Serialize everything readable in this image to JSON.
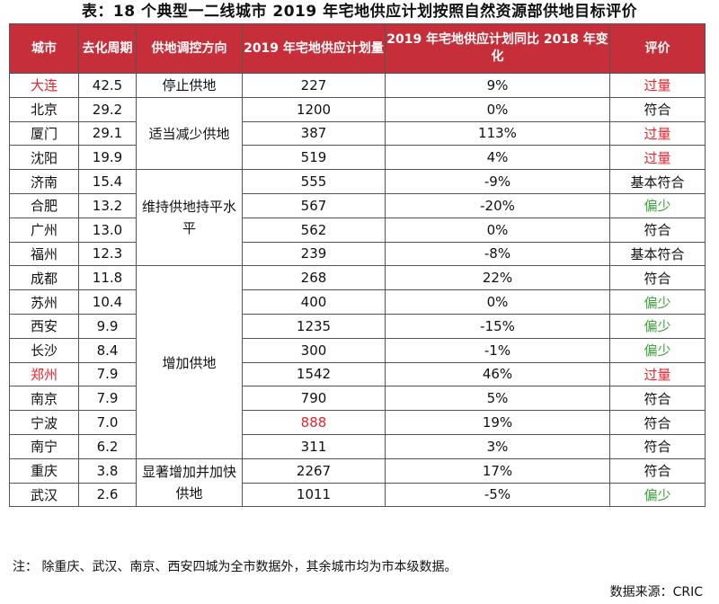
{
  "title": "表：18 个典型一二线城市 2019 年宅地供应计划按照自然资源部供地目标评价",
  "headers": {
    "city": "城市",
    "period": "去化周期",
    "direction": "供地调控方向",
    "plan": "2019 年宅地供应计划量",
    "change": "2019 年宅地供应计划同比 2018 年变化",
    "rating": "评价"
  },
  "colors": {
    "header_bg": "#c62f3a",
    "red_text": "#e8232a",
    "green_text": "#3aa53a"
  },
  "directions": {
    "stop": "停止供地",
    "reduce": "适当减少供地",
    "flat": "维持供地持平水平",
    "increase": "增加供地",
    "significant": "显著增加并加快供地"
  },
  "rows": [
    {
      "city": "大连",
      "period": "42.5",
      "plan": "227",
      "change": "9%",
      "rating": "过量"
    },
    {
      "city": "北京",
      "period": "29.2",
      "plan": "1200",
      "change": "0%",
      "rating": "符合"
    },
    {
      "city": "厦门",
      "period": "29.1",
      "plan": "387",
      "change": "113%",
      "rating": "过量"
    },
    {
      "city": "沈阳",
      "period": "19.9",
      "plan": "519",
      "change": "4%",
      "rating": "过量"
    },
    {
      "city": "济南",
      "period": "15.4",
      "plan": "555",
      "change": "-9%",
      "rating": "基本符合"
    },
    {
      "city": "合肥",
      "period": "13.2",
      "plan": "567",
      "change": "-20%",
      "rating": "偏少"
    },
    {
      "city": "广州",
      "period": "13.0",
      "plan": "562",
      "change": "0%",
      "rating": "符合"
    },
    {
      "city": "福州",
      "period": "12.3",
      "plan": "239",
      "change": "-8%",
      "rating": "基本符合"
    },
    {
      "city": "成都",
      "period": "11.8",
      "plan": "268",
      "change": "22%",
      "rating": "符合"
    },
    {
      "city": "苏州",
      "period": "10.4",
      "plan": "400",
      "change": "0%",
      "rating": "偏少"
    },
    {
      "city": "西安",
      "period": "9.9",
      "plan": "1235",
      "change": "-15%",
      "rating": "偏少"
    },
    {
      "city": "长沙",
      "period": "8.4",
      "plan": "300",
      "change": "-1%",
      "rating": "偏少"
    },
    {
      "city": "郑州",
      "period": "7.9",
      "plan": "1542",
      "change": "46%",
      "rating": "过量"
    },
    {
      "city": "南京",
      "period": "7.9",
      "plan": "790",
      "change": "5%",
      "rating": "符合"
    },
    {
      "city": "宁波",
      "period": "7.0",
      "plan": "888",
      "change": "19%",
      "rating": "符合"
    },
    {
      "city": "南宁",
      "period": "6.2",
      "plan": "311",
      "change": "3%",
      "rating": "符合"
    },
    {
      "city": "重庆",
      "period": "3.8",
      "plan": "2267",
      "change": "17%",
      "rating": "符合"
    },
    {
      "city": "武汉",
      "period": "2.6",
      "plan": "1011",
      "change": "-5%",
      "rating": "偏少"
    }
  ],
  "note": "注： 除重庆、武汉、南京、西安四城为全市数据外，其余城市均为市本级数据。",
  "source": "数据来源：CRIC"
}
